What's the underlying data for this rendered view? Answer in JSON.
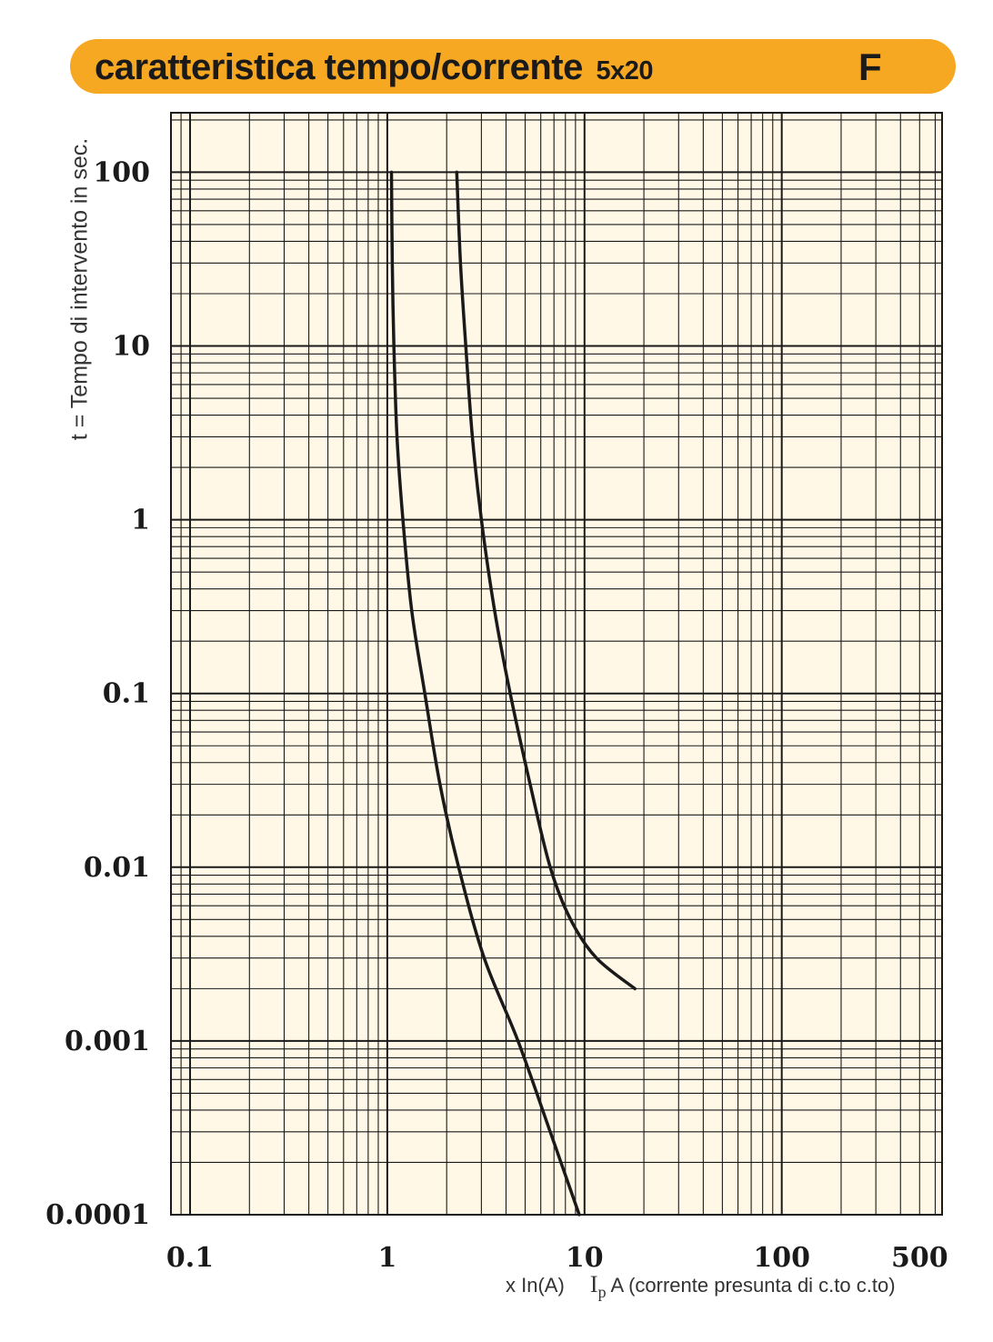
{
  "header": {
    "title": "caratteristica tempo/corrente",
    "subtitle": "5x20",
    "code": "F"
  },
  "chart_data": {
    "type": "line",
    "title": "caratteristica tempo/corrente 5x20",
    "ylabel": "t = Tempo di intervento in sec.",
    "xlabel_prefix": "x In(A)",
    "xlabel_symbol": "I",
    "xlabel_symbol_sub": "p",
    "xlabel_rest": "A (corrente presunta di c.to c.to)",
    "xscale": "log",
    "yscale": "log",
    "xlim": [
      0.08,
      650
    ],
    "ylim": [
      0.0001,
      220
    ],
    "grid": true,
    "background": "#fff8e6",
    "line_color": "#1a1a1a",
    "x_ticks": [
      {
        "value": 0.1,
        "label": "0.1"
      },
      {
        "value": 1,
        "label": "1"
      },
      {
        "value": 10,
        "label": "10"
      },
      {
        "value": 100,
        "label": "100"
      },
      {
        "value": 500,
        "label": "500"
      }
    ],
    "y_ticks": [
      {
        "value": 100,
        "label": "100"
      },
      {
        "value": 10,
        "label": "10"
      },
      {
        "value": 1,
        "label": "1"
      },
      {
        "value": 0.1,
        "label": "0.1"
      },
      {
        "value": 0.01,
        "label": "0.01"
      },
      {
        "value": 0.001,
        "label": "0.001"
      },
      {
        "value": 0.0001,
        "label": "0.0001"
      }
    ],
    "series": [
      {
        "x": [
          1.05,
          1.06,
          1.08,
          1.12,
          1.2,
          1.33,
          1.55,
          1.85,
          2.3,
          3.1,
          4.6,
          6.7,
          9.4
        ],
        "y": [
          100,
          30,
          10,
          3,
          1,
          0.3,
          0.1,
          0.03,
          0.01,
          0.003,
          0.001,
          0.0003,
          0.0001
        ]
      },
      {
        "x": [
          2.25,
          2.35,
          2.5,
          2.7,
          3.0,
          3.5,
          4.2,
          5.3,
          6.7,
          8.5,
          11.5,
          18
        ],
        "y": [
          100,
          30,
          10,
          3,
          1,
          0.3,
          0.1,
          0.03,
          0.01,
          0.005,
          0.003,
          0.002
        ]
      }
    ]
  }
}
